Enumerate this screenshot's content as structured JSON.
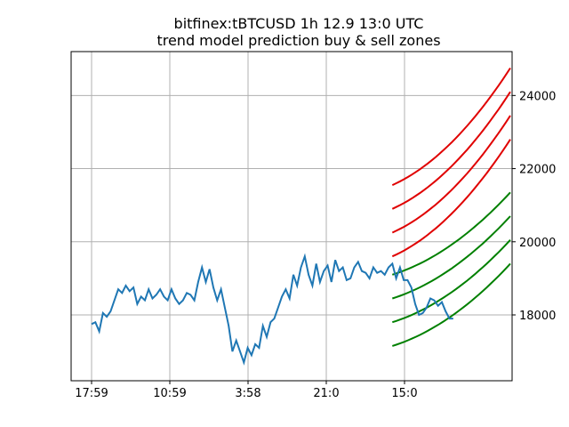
{
  "chart_data": {
    "type": "line",
    "title": "bitfinex:tBTCUSD 1h 12.9 13:0 UTC",
    "subtitle": "trend model prediction buy & sell zones",
    "xlabel": "",
    "ylabel": "",
    "x_ticks": [
      "17:59",
      "10:59",
      "3:58",
      "21:0",
      "15:0"
    ],
    "y_ticks": [
      18000,
      20000,
      22000,
      24000
    ],
    "y_axis_side": "right",
    "ylim": [
      16200,
      25200
    ],
    "grid": true,
    "price_series": {
      "color": "#1f77b4",
      "x_hours": [
        0,
        2,
        4,
        6,
        8,
        10,
        12,
        14,
        16,
        18,
        20,
        22,
        24,
        26,
        28,
        30,
        32,
        34,
        36,
        38,
        40,
        42,
        44,
        46,
        48,
        50,
        52,
        54,
        56,
        58,
        60,
        62,
        64,
        66,
        68,
        70,
        72,
        74,
        76,
        78,
        80,
        82,
        84,
        86,
        88,
        90,
        92,
        94,
        96,
        98,
        100,
        102,
        104,
        106,
        108,
        110,
        112,
        114,
        116,
        118,
        120,
        122,
        124,
        126,
        128,
        130,
        132,
        134,
        136,
        138,
        140,
        142,
        144,
        146,
        148,
        150,
        152,
        154,
        156,
        158,
        160,
        162,
        164,
        166,
        168,
        170,
        172,
        174,
        176,
        178,
        180,
        182,
        184,
        186,
        188,
        190
      ],
      "values": [
        17750,
        17800,
        17550,
        18050,
        17950,
        18100,
        18400,
        18700,
        18600,
        18800,
        18650,
        18750,
        18300,
        18500,
        18400,
        18700,
        18450,
        18550,
        18700,
        18500,
        18400,
        18700,
        18450,
        18300,
        18400,
        18600,
        18550,
        18400,
        18900,
        19300,
        18900,
        19250,
        18750,
        18400,
        18700,
        18200,
        17700,
        17000,
        17300,
        17000,
        16700,
        17100,
        16900,
        17200,
        17100,
        17700,
        17400,
        17800,
        17900,
        18200,
        18500,
        18700,
        18450,
        19100,
        18800,
        19300,
        19600,
        19100,
        18800,
        19400,
        18900,
        19200,
        19350,
        18900,
        19500,
        19200,
        19300,
        18950,
        19000,
        19300,
        19450,
        19200,
        19150,
        19000,
        19300,
        19150,
        19200,
        19100,
        19300,
        19400,
        19000,
        19300,
        18950,
        18950,
        18750,
        18300,
        18000,
        18050,
        18200,
        18450,
        18400,
        18250,
        18350,
        18100,
        17900,
        17900
      ]
    },
    "zones": {
      "x_start_hours": 158,
      "x_end_hours": 220,
      "sell": {
        "color": "#e00000",
        "start_values": [
          21550,
          20900,
          20250,
          19600
        ],
        "end_values": [
          24750,
          24100,
          23450,
          22800
        ]
      },
      "buy": {
        "color": "#008000",
        "start_values": [
          19100,
          18450,
          17800,
          17150
        ],
        "end_values": [
          21350,
          20700,
          20050,
          19400
        ]
      }
    }
  }
}
